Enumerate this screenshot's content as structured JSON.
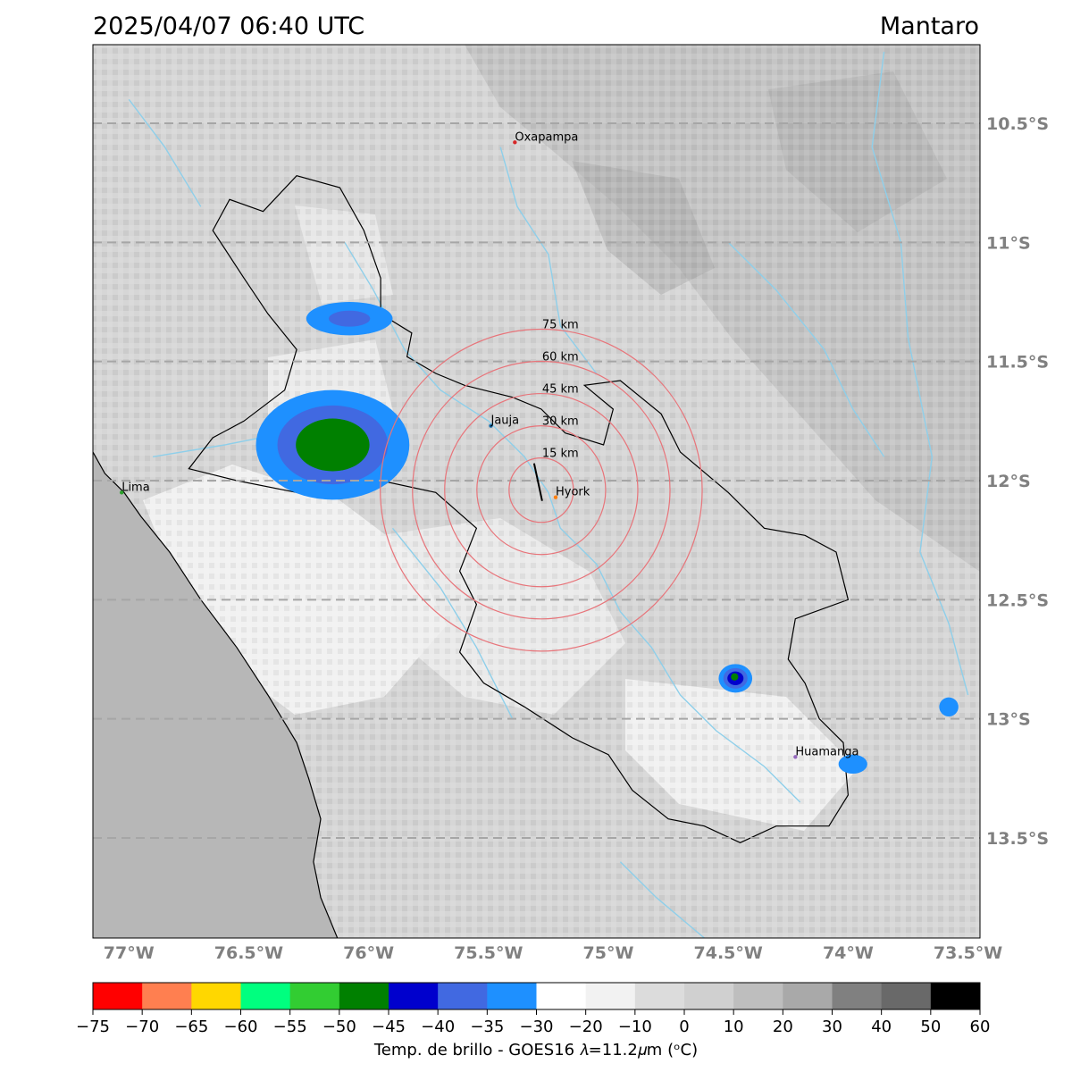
{
  "header": {
    "datetime": "2025/04/07 06:40 UTC",
    "region": "Mantaro"
  },
  "map": {
    "extent": {
      "lon": [
        -77.15,
        -73.45
      ],
      "lat": [
        -13.92,
        -10.17
      ]
    },
    "lat_ticks": [
      {
        "lat": -10.5,
        "label": "10.5°S"
      },
      {
        "lat": -11.0,
        "label": "11°S"
      },
      {
        "lat": -11.5,
        "label": "11.5°S"
      },
      {
        "lat": -12.0,
        "label": "12°S"
      },
      {
        "lat": -12.5,
        "label": "12.5°S"
      },
      {
        "lat": -13.0,
        "label": "13°S"
      },
      {
        "lat": -13.5,
        "label": "13.5°S"
      }
    ],
    "lon_ticks": [
      {
        "lon": -77.0,
        "label": "77°W"
      },
      {
        "lon": -76.5,
        "label": "76.5°W"
      },
      {
        "lon": -76.0,
        "label": "76°W"
      },
      {
        "lon": -75.5,
        "label": "75.5°W"
      },
      {
        "lon": -75.0,
        "label": "75°W"
      },
      {
        "lon": -74.5,
        "label": "74.5°W"
      },
      {
        "lon": -74.0,
        "label": "74°W"
      },
      {
        "lon": -73.5,
        "label": "73.5°W"
      }
    ],
    "gridline_color": "#a6a6a6",
    "tick_label_color": "#808080",
    "radar": {
      "name": "Hyork",
      "lon": -75.28,
      "lat": -12.04
    },
    "range_rings": [
      {
        "km": 15,
        "label": "15 km"
      },
      {
        "km": 30,
        "label": "30 km"
      },
      {
        "km": 45,
        "label": "45 km"
      },
      {
        "km": 60,
        "label": "60 km"
      },
      {
        "km": 75,
        "label": "75 km"
      }
    ],
    "ring_color": "#e8747a",
    "cities": [
      {
        "name": "Oxapampa",
        "lon": -75.39,
        "lat": -10.58,
        "color": "#d62728"
      },
      {
        "name": "Jauja",
        "lon": -75.49,
        "lat": -11.77,
        "color": "#1f77b4"
      },
      {
        "name": "Hyork",
        "lon": -75.22,
        "lat": -12.07,
        "color": "#ff7f0e"
      },
      {
        "name": "Lima",
        "lon": -77.03,
        "lat": -12.05,
        "color": "#2ca02c"
      },
      {
        "name": "Huamanga",
        "lon": -74.22,
        "lat": -13.16,
        "color": "#9467bd"
      }
    ],
    "river_color": "#8ecfea",
    "land_color": "#d6d6d6",
    "ocean_color": "#b7b7b7",
    "convective_cells": [
      {
        "lon": -76.15,
        "lat": -11.85,
        "rx": 0.32,
        "ry": 0.23,
        "min_temp_c": -52
      },
      {
        "lon": -76.08,
        "lat": -11.32,
        "rx": 0.18,
        "ry": 0.07,
        "min_temp_c": -38
      },
      {
        "lon": -74.47,
        "lat": -12.83,
        "rx": 0.07,
        "ry": 0.06,
        "min_temp_c": -47
      },
      {
        "lon": -73.98,
        "lat": -13.19,
        "rx": 0.06,
        "ry": 0.04,
        "min_temp_c": -34
      },
      {
        "lon": -73.58,
        "lat": -12.95,
        "rx": 0.04,
        "ry": 0.04,
        "min_temp_c": -32
      }
    ]
  },
  "colorbar": {
    "ticks": [
      "−75",
      "−70",
      "−65",
      "−60",
      "−55",
      "−50",
      "−45",
      "−40",
      "−35",
      "−30",
      "−20",
      "−10",
      "0",
      "10",
      "20",
      "30",
      "40",
      "50",
      "60"
    ],
    "colors": [
      "#ff0000",
      "#ff7f50",
      "#ffd700",
      "#00ff7f",
      "#32cd32",
      "#008000",
      "#0000cd",
      "#4169e1",
      "#1e90ff",
      "#ffffff",
      "#f2f2f2",
      "#dcdcdc",
      "#d0d0d0",
      "#bebebe",
      "#a9a9a9",
      "#808080",
      "#696969",
      "#000000"
    ],
    "label": "Temp. de brillo - GOES16 𝜆=11.2𝜇m (ᵒC)"
  }
}
